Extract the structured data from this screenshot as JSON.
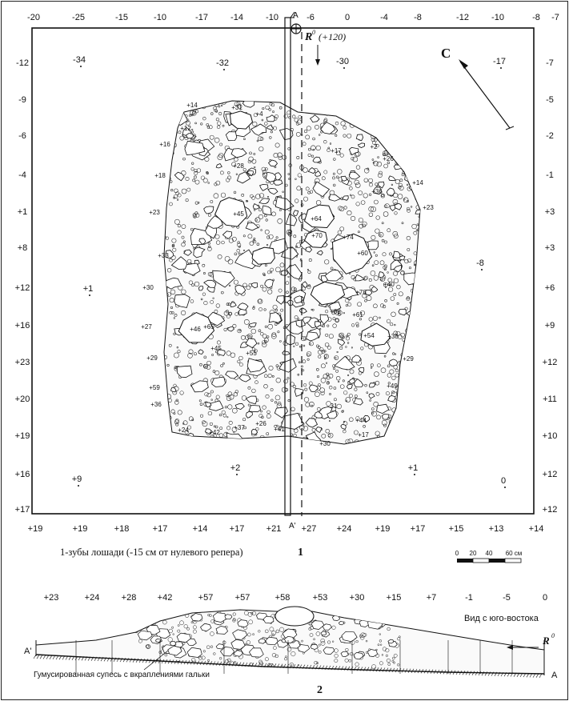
{
  "plan": {
    "top_scale": [
      "-20",
      "-25",
      "-15",
      "-10",
      "-17",
      "-14",
      "-10",
      "-6",
      "0",
      "-4",
      "-8",
      "-12",
      "-10",
      "-8",
      "-7"
    ],
    "left_scale": [
      "-12",
      "-9",
      "-6",
      "-4",
      "+1",
      "+8",
      "+12",
      "+16",
      "+23",
      "+20",
      "+19",
      "+16",
      "+17"
    ],
    "right_scale": [
      "-7",
      "-5",
      "-2",
      "-1",
      "+3",
      "+3",
      "+6",
      "+9",
      "+12",
      "+11",
      "+10",
      "+12",
      "+12"
    ],
    "bottom_scale": [
      "+19",
      "+19",
      "+18",
      "+17",
      "+14",
      "+17",
      "+21",
      "+27",
      "+24",
      "+19",
      "+17",
      "+15",
      "+13",
      "+14"
    ],
    "section_marker_top": "A",
    "section_marker_bottom": "A'",
    "benchmark_label": "R",
    "benchmark_sup": "0",
    "benchmark_value": "(+120)",
    "north_label": "C",
    "field_points": [
      "-34",
      "-32",
      "-30",
      "-17",
      "+1",
      "-8",
      "+9",
      "+2",
      "+1",
      "0"
    ],
    "stone_labels": [
      "+14",
      "+31",
      "+4",
      "+12",
      "+16",
      "+28",
      "+18",
      "+23",
      "+45",
      "+33",
      "+30",
      "+27",
      "+46",
      "+29",
      "+59",
      "+36",
      "+24",
      "+42",
      "+37",
      "+26",
      "+41",
      "+65",
      "+45",
      "+55",
      "+17",
      "+2",
      "+26",
      "+36",
      "+14",
      "+23",
      "+64",
      "+70",
      "+74",
      "+60",
      "+78",
      "+40",
      "+68",
      "+61",
      "+54",
      "+38",
      "+29",
      "+44",
      "+17",
      "+30",
      "+49",
      "31"
    ],
    "legend": "1-зубы лошади (-15 см от нулевого репера)",
    "figure_number": "1",
    "scale_bar_ticks": [
      "0",
      "20",
      "40",
      "60 см"
    ]
  },
  "section": {
    "top_values": [
      "+23",
      "+24",
      "+28",
      "+42",
      "+57",
      "+57",
      "+58",
      "+53",
      "+30",
      "+15",
      "+7",
      "-1",
      "-5",
      "0"
    ],
    "view_label": "Вид с юго-востока",
    "left_end": "A'",
    "right_end": "A",
    "benchmark_label": "R",
    "benchmark_sup": "0",
    "soil_label": "Гумусированная супесь с вкраплениями гальки",
    "figure_number": "2"
  }
}
